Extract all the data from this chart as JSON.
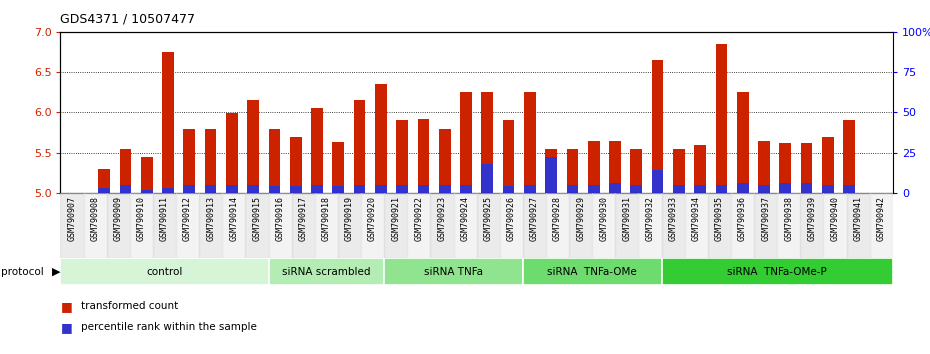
{
  "title": "GDS4371 / 10507477",
  "samples": [
    "GSM790907",
    "GSM790908",
    "GSM790909",
    "GSM790910",
    "GSM790911",
    "GSM790912",
    "GSM790913",
    "GSM790914",
    "GSM790915",
    "GSM790916",
    "GSM790917",
    "GSM790918",
    "GSM790919",
    "GSM790920",
    "GSM790921",
    "GSM790922",
    "GSM790923",
    "GSM790924",
    "GSM790925",
    "GSM790926",
    "GSM790927",
    "GSM790928",
    "GSM790929",
    "GSM790930",
    "GSM790931",
    "GSM790932",
    "GSM790933",
    "GSM790934",
    "GSM790935",
    "GSM790936",
    "GSM790937",
    "GSM790938",
    "GSM790939",
    "GSM790940",
    "GSM790941",
    "GSM790942"
  ],
  "red_values": [
    5.3,
    5.55,
    5.45,
    6.75,
    5.8,
    5.8,
    5.99,
    6.15,
    5.8,
    5.7,
    6.05,
    5.63,
    6.15,
    6.35,
    5.9,
    5.92,
    5.8,
    6.25,
    6.25,
    5.9,
    6.25,
    5.55,
    5.55,
    5.65,
    5.65,
    5.55,
    6.65,
    5.55,
    5.6,
    6.85,
    6.25,
    5.65,
    5.62,
    5.62,
    5.7,
    5.9
  ],
  "blue_values": [
    3,
    5,
    2,
    3,
    5,
    5,
    5,
    5,
    4,
    4,
    5,
    4,
    5,
    5,
    5,
    5,
    5,
    5,
    18,
    4,
    5,
    22,
    5,
    5,
    6,
    5,
    14,
    5,
    5,
    5,
    6,
    5,
    6,
    6,
    5,
    5
  ],
  "groups": [
    {
      "label": "control",
      "start": 0,
      "end": 9,
      "color": "#d6f5d6"
    },
    {
      "label": "siRNA scrambled",
      "start": 9,
      "end": 14,
      "color": "#b3edb3"
    },
    {
      "label": "siRNA TNFa",
      "start": 14,
      "end": 20,
      "color": "#90e490"
    },
    {
      "label": "siRNA  TNFa-OMe",
      "start": 20,
      "end": 26,
      "color": "#6ddb6d"
    },
    {
      "label": "siRNA  TNFa-OMe-P",
      "start": 26,
      "end": 36,
      "color": "#33cc33"
    }
  ],
  "ylim_left": [
    5.0,
    7.0
  ],
  "ylim_right": [
    0,
    100
  ],
  "yticks_left": [
    5.0,
    5.5,
    6.0,
    6.5,
    7.0
  ],
  "yticks_right": [
    0,
    25,
    50,
    75,
    100
  ],
  "bar_color": "#cc2200",
  "blue_color": "#3333cc",
  "bg_color": "#ffffff",
  "bar_width": 0.55,
  "baseline": 5.0,
  "blue_scale": 0.02
}
